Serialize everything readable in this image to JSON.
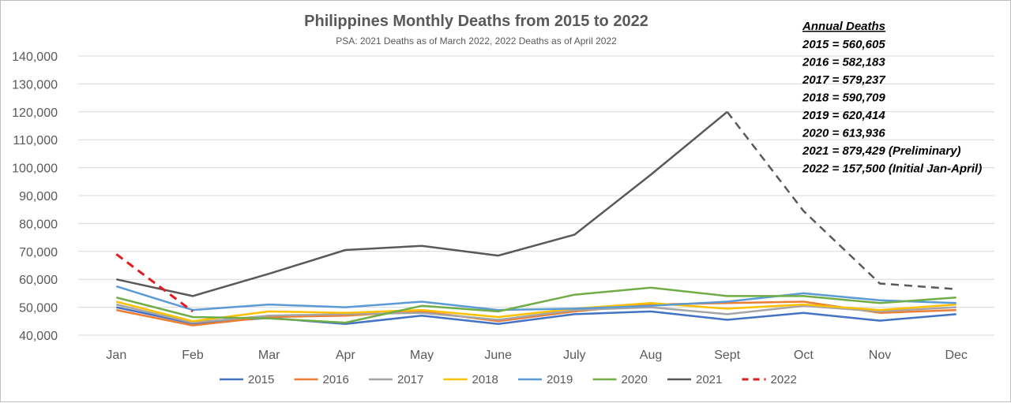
{
  "chart_data": {
    "type": "line",
    "title": "Philippines Monthly Deaths from 2015 to 2022",
    "subtitle": "PSA: 2021 Deaths as of March 2022, 2022 Deaths as of April 2022",
    "categories": [
      "Jan",
      "Feb",
      "Mar",
      "Apr",
      "May",
      "June",
      "July",
      "Aug",
      "Sept",
      "Oct",
      "Nov",
      "Dec"
    ],
    "ylim": [
      40000,
      140000
    ],
    "yticks": [
      "40,000",
      "50,000",
      "60,000",
      "70,000",
      "80,000",
      "90,000",
      "100,000",
      "110,000",
      "120,000",
      "130,000",
      "140,000"
    ],
    "grid": true,
    "legend": "bottom",
    "series": [
      {
        "name": "2015",
        "color": "#4472c4",
        "style": "solid",
        "values": [
          50000,
          44200,
          46200,
          44000,
          47000,
          44000,
          47500,
          48500,
          45500,
          48000,
          45200,
          47500
        ]
      },
      {
        "name": "2016",
        "color": "#ed7d31",
        "style": "solid",
        "values": [
          49000,
          43500,
          46500,
          47000,
          48500,
          45000,
          48500,
          51000,
          51500,
          52000,
          48000,
          49000
        ]
      },
      {
        "name": "2017",
        "color": "#a5a5a5",
        "style": "solid",
        "values": [
          51000,
          44500,
          47000,
          47500,
          48000,
          45500,
          49000,
          50000,
          47500,
          50500,
          48500,
          50000
        ]
      },
      {
        "name": "2018",
        "color": "#ffc000",
        "style": "solid",
        "values": [
          52000,
          45000,
          48500,
          48000,
          49000,
          46500,
          49500,
          51500,
          49500,
          51000,
          49000,
          51000
        ]
      },
      {
        "name": "2019",
        "color": "#5b9bd5",
        "style": "solid",
        "values": [
          57500,
          49000,
          51000,
          50000,
          52000,
          49000,
          49500,
          50500,
          52000,
          55000,
          52500,
          51500
        ]
      },
      {
        "name": "2020",
        "color": "#70ad47",
        "style": "solid",
        "values": [
          53500,
          46500,
          46000,
          44500,
          50500,
          48500,
          54500,
          57000,
          54000,
          54000,
          51500,
          53500
        ]
      },
      {
        "name": "2021",
        "color": "#595959",
        "style": "solid-then-dashed",
        "dash_from_index": 8,
        "values": [
          60000,
          54000,
          62000,
          70500,
          72000,
          68500,
          76000,
          97500,
          120000,
          84500,
          58500,
          56500
        ]
      },
      {
        "name": "2022",
        "color": "#e31a1c",
        "style": "dashed",
        "values": [
          69000,
          48500,
          null,
          null,
          null,
          null,
          null,
          null,
          null,
          null,
          null,
          null
        ]
      }
    ],
    "annotation": {
      "heading": "Annual Deaths",
      "lines": [
        "2015 = 560,605",
        "2016 = 582,183",
        "2017 = 579,237",
        "2018 = 590,709",
        "2019 = 620,414",
        "2020 = 613,936",
        "2021 = 879,429 (Preliminary)",
        "2022 = 157,500 (Initial Jan-April)"
      ]
    }
  }
}
